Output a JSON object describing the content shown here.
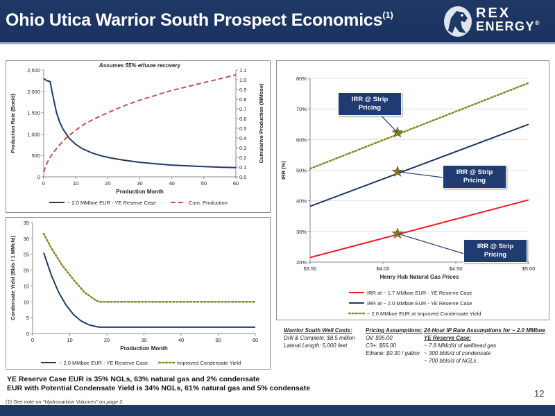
{
  "header": {
    "title": "Ohio Utica Warrior South Prospect Economics",
    "title_sup": "(1)",
    "logo_line1": "REX",
    "logo_line2": "ENERGY",
    "logo_mark": "®"
  },
  "chart_data": [
    {
      "id": "production",
      "type": "line",
      "title": "Assumes 55% ethane recovery",
      "xlabel": "Production Month",
      "ylabel": "Production Rate (Boe/d)",
      "y2label": "Cumulative Production (MMboe)",
      "xlim": [
        0,
        60
      ],
      "ylim": [
        0,
        2500
      ],
      "y2lim": [
        0,
        1.1
      ],
      "xticks": [
        "0",
        "10",
        "20",
        "30",
        "40",
        "50",
        "60"
      ],
      "yticks": [
        "0",
        "500",
        "1,000",
        "1,500",
        "2,000",
        "2,500"
      ],
      "y2ticks": [
        "0.0",
        "0.1",
        "0.2",
        "0.3",
        "0.4",
        "0.5",
        "0.6",
        "0.7",
        "0.8",
        "0.9",
        "1.0",
        "1.1"
      ],
      "series": [
        {
          "name": "~ 2.0 MMboe EUR - YE Reserve Case",
          "color": "#1f3864",
          "style": "solid",
          "axis": "left",
          "x": [
            0,
            1,
            2,
            3,
            4,
            5,
            6,
            8,
            10,
            12,
            15,
            18,
            21,
            25,
            30,
            35,
            40,
            45,
            50,
            55,
            60
          ],
          "y": [
            2300,
            2250,
            2230,
            1850,
            1500,
            1280,
            1120,
            900,
            760,
            660,
            560,
            490,
            440,
            390,
            340,
            305,
            275,
            255,
            240,
            225,
            215
          ]
        },
        {
          "name": "Cum. Production",
          "color": "#c0504d",
          "style": "dashed",
          "axis": "right",
          "x": [
            0,
            1,
            2,
            3,
            5,
            7,
            10,
            13,
            16,
            20,
            25,
            30,
            35,
            40,
            45,
            50,
            55,
            60
          ],
          "y": [
            0.05,
            0.14,
            0.2,
            0.25,
            0.33,
            0.4,
            0.48,
            0.55,
            0.6,
            0.66,
            0.73,
            0.79,
            0.84,
            0.89,
            0.93,
            0.97,
            1.01,
            1.05
          ]
        }
      ]
    },
    {
      "id": "condensate",
      "type": "line",
      "xlabel": "Production Month",
      "ylabel": "Condensate Yield (Bbls / 1 MMcfd)",
      "xlim": [
        0,
        60
      ],
      "ylim": [
        0,
        35
      ],
      "xticks": [
        "0",
        "10",
        "20",
        "30",
        "40",
        "50",
        "60"
      ],
      "yticks": [
        "0",
        "5",
        "10",
        "15",
        "20",
        "25",
        "30",
        "35"
      ],
      "series": [
        {
          "name": "~ 2.0 MMboe EUR - YE Reserve Case",
          "color": "#1f3864",
          "style": "solid",
          "x": [
            3,
            5,
            7,
            9,
            11,
            13,
            15,
            17,
            18,
            20,
            60
          ],
          "y": [
            25.5,
            18.5,
            13,
            9,
            6,
            4,
            2.8,
            2.2,
            2,
            2,
            2
          ]
        },
        {
          "name": "Improved Condensate Yield",
          "color": "#8a8a2e",
          "style": "dotted",
          "x": [
            3,
            5,
            8,
            11,
            14,
            17,
            18,
            20,
            60
          ],
          "y": [
            31.5,
            27,
            21.5,
            17,
            13,
            10.5,
            10,
            10,
            10
          ]
        }
      ]
    },
    {
      "id": "irr",
      "type": "line",
      "xlabel": "Henry Hub Natural Gas Prices",
      "ylabel": "IRR (%)",
      "xlim": [
        3.5,
        5.0
      ],
      "ylim": [
        20,
        80
      ],
      "xticks": [
        "$3.50",
        "$4.00",
        "$4.50",
        "$5.00"
      ],
      "yticks": [
        "20%",
        "30%",
        "40%",
        "50%",
        "60%",
        "70%",
        "80%"
      ],
      "series": [
        {
          "name": "IRR at ~ 1.7 MMboe EUR - YE Reserve Case",
          "color": "#ee1c25",
          "style": "solid",
          "x": [
            3.5,
            5.0
          ],
          "y": [
            21.5,
            40.3
          ]
        },
        {
          "name": "IRR at ~ 2.0 MMboe EUR - YE Reserve Case",
          "color": "#1f3864",
          "style": "solid",
          "x": [
            3.5,
            5.0
          ],
          "y": [
            38.2,
            65
          ]
        },
        {
          "name": "~ 2.0 MMboe EUR at Improved Condensate Yield",
          "color": "#8a8a2e",
          "style": "dotted",
          "x": [
            3.5,
            5.0
          ],
          "y": [
            50.5,
            78.5
          ]
        }
      ],
      "markers": [
        {
          "x": 4.1,
          "y": 62.3
        },
        {
          "x": 4.1,
          "y": 49.5
        },
        {
          "x": 4.1,
          "y": 29.3
        }
      ],
      "callouts": [
        {
          "text": "IRR @ Strip Pricing"
        },
        {
          "text": "IRR @ Strip Pricing"
        },
        {
          "text": "IRR @ Strip Pricing"
        }
      ]
    }
  ],
  "costs": {
    "wells_head": "Warrior South Well Costs:",
    "wells_lines": [
      "Drill & Complete: $8.5 million",
      "Lateral Length: 5,000 feet"
    ],
    "pricing_head": "Pricing Assumptions:",
    "pricing_lines": [
      "Oil: $95.00",
      "C3+: $55.00",
      "Ethane: $0.30 / gallon"
    ],
    "ip_head": "24-Hour IP Rate Assumptions for ~ 2.0 MMboe YE Reserve Case:",
    "ip_lines": [
      "~ 7.8 MMcf/d of wellhead gas",
      "~ 300 bbls/d of condensate",
      "~ 700 bbls/d of NGLs"
    ]
  },
  "summary": {
    "line1": "YE Reserve Case EUR is 35% NGLs, 63% natural gas and 2% condensate",
    "line2": "EUR with Potential Condensate Yield is 34% NGLs, 61% natural gas and 5% condensate"
  },
  "footnote": "(1)     See note on \"Hydrocarbon Volumes\" on page 2.",
  "page_number": "12",
  "colors": {
    "header_bg": "#1f3864",
    "callout_bg": "#203a72",
    "marker": "#8b7a2a"
  }
}
